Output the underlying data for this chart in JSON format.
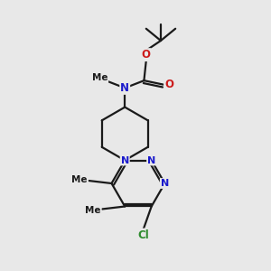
{
  "bg_color": "#e8e8e8",
  "bond_color": "#1a1a1a",
  "N_color": "#1a1acc",
  "O_color": "#cc1a1a",
  "Cl_color": "#2e8b2e",
  "line_width": 1.6,
  "figsize": [
    3.0,
    3.0
  ],
  "dpi": 100,
  "xlim": [
    0,
    10
  ],
  "ylim": [
    0,
    10
  ]
}
